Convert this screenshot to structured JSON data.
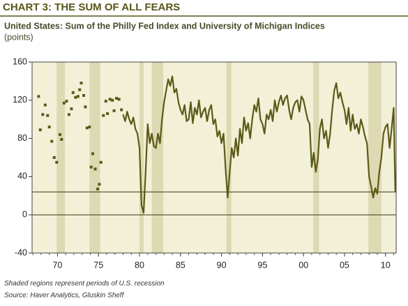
{
  "chart_data": {
    "type": "line",
    "title": "CHART 3: THE SUM OF ALL FEARS",
    "subtitle": "United States: Sum of the Philly Fed Index and University of Michigan Indices",
    "y_label": "(points)",
    "notes": [
      "Shaded regions represent periods of U.S. recession",
      "Source: Haver Analytics, Gluskin Sheff"
    ],
    "xlim": [
      1966.9,
      2011.3
    ],
    "xticks": [
      {
        "value": 1970,
        "label": "70"
      },
      {
        "value": 1975,
        "label": "75"
      },
      {
        "value": 1980,
        "label": "80"
      },
      {
        "value": 1985,
        "label": "85"
      },
      {
        "value": 1990,
        "label": "90"
      },
      {
        "value": 1995,
        "label": "95"
      },
      {
        "value": 2000,
        "label": "00"
      },
      {
        "value": 2005,
        "label": "05"
      },
      {
        "value": 2010,
        "label": "10"
      }
    ],
    "ylim": [
      -40,
      160
    ],
    "yticks": [
      -40,
      0,
      40,
      80,
      120,
      160
    ],
    "hlines": [
      0,
      24
    ],
    "recessions": [
      [
        1969.9,
        1970.9
      ],
      [
        1973.9,
        1975.2
      ],
      [
        1980.0,
        1980.5
      ],
      [
        1981.5,
        1982.9
      ],
      [
        1990.6,
        1991.2
      ],
      [
        2001.2,
        2001.9
      ],
      [
        2007.9,
        2009.5
      ]
    ],
    "background": "#f3f0d8",
    "recession_color": "#dcd9b3",
    "series": [
      {
        "mode": "markers",
        "color": "#5b5a16",
        "x": [
          1967.7,
          1967.9,
          1968.2,
          1968.5,
          1968.8,
          1969.0,
          1969.3,
          1969.6,
          1969.9,
          1970.3,
          1970.5,
          1970.8,
          1971.1,
          1971.4,
          1971.7,
          1971.9,
          1972.2,
          1972.5,
          1972.7,
          1972.9,
          1973.2,
          1973.4,
          1973.6,
          1973.9,
          1974.1,
          1974.3,
          1974.6,
          1974.9,
          1975.1,
          1975.3,
          1975.6,
          1975.9,
          1976.1,
          1976.4,
          1976.7,
          1976.9,
          1977.2,
          1977.5,
          1977.8
        ],
        "values": [
          124,
          89,
          105,
          115,
          104,
          92,
          77,
          60,
          55,
          84,
          79,
          117,
          119,
          105,
          111,
          128,
          123,
          124,
          131,
          138,
          125,
          113,
          91,
          92,
          50,
          64,
          48,
          27,
          32,
          55,
          104,
          119,
          106,
          121,
          120,
          109,
          122,
          121,
          110
        ]
      },
      {
        "mode": "line",
        "color": "#5b5a16",
        "x": [
          1978,
          1978.25,
          1978.5,
          1978.75,
          1979,
          1979.25,
          1979.5,
          1979.75,
          1980,
          1980.25,
          1980.5,
          1980.75,
          1981,
          1981.25,
          1981.5,
          1981.75,
          1982,
          1982.25,
          1982.5,
          1982.75,
          1983,
          1983.25,
          1983.5,
          1983.75,
          1984,
          1984.25,
          1984.5,
          1984.75,
          1985,
          1985.25,
          1985.5,
          1985.75,
          1986,
          1986.25,
          1986.5,
          1986.75,
          1987,
          1987.25,
          1987.5,
          1987.75,
          1988,
          1988.25,
          1988.5,
          1988.75,
          1989,
          1989.25,
          1989.5,
          1989.75,
          1990,
          1990.25,
          1990.5,
          1990.75,
          1991,
          1991.25,
          1991.5,
          1991.75,
          1992,
          1992.25,
          1992.5,
          1992.75,
          1993,
          1993.25,
          1993.5,
          1993.75,
          1994,
          1994.25,
          1994.5,
          1994.75,
          1995,
          1995.25,
          1995.5,
          1995.75,
          1996,
          1996.25,
          1996.5,
          1996.75,
          1997,
          1997.25,
          1997.5,
          1997.75,
          1998,
          1998.25,
          1998.5,
          1998.75,
          1999,
          1999.25,
          1999.5,
          1999.75,
          2000,
          2000.25,
          2000.5,
          2000.75,
          2001,
          2001.25,
          2001.5,
          2001.75,
          2002,
          2002.25,
          2002.5,
          2002.75,
          2003,
          2003.25,
          2003.5,
          2003.75,
          2004,
          2004.25,
          2004.5,
          2004.75,
          2005,
          2005.25,
          2005.5,
          2005.75,
          2006,
          2006.25,
          2006.5,
          2006.75,
          2007,
          2007.25,
          2007.5,
          2007.75,
          2008,
          2008.25,
          2008.5,
          2008.75,
          2009,
          2009.25,
          2009.5,
          2009.75,
          2010,
          2010.25,
          2010.5,
          2010.75,
          2011,
          2011.1,
          2011.2
        ],
        "values": [
          105,
          98,
          108,
          100,
          95,
          102,
          90,
          85,
          70,
          10,
          2,
          45,
          95,
          75,
          85,
          72,
          70,
          85,
          75,
          100,
          118,
          130,
          142,
          135,
          145,
          128,
          132,
          118,
          110,
          105,
          115,
          98,
          100,
          118,
          96,
          112,
          105,
          120,
          102,
          108,
          112,
          98,
          110,
          115,
          95,
          100,
          82,
          88,
          75,
          85,
          48,
          18,
          45,
          70,
          60,
          80,
          62,
          90,
          75,
          102,
          88,
          96,
          80,
          100,
          115,
          108,
          122,
          100,
          95,
          85,
          105,
          100,
          110,
          98,
          120,
          108,
          118,
          125,
          115,
          122,
          125,
          110,
          100,
          112,
          118,
          120,
          108,
          124,
          120,
          110,
          100,
          95,
          50,
          65,
          45,
          58,
          90,
          100,
          80,
          88,
          70,
          85,
          110,
          130,
          138,
          122,
          128,
          118,
          110,
          95,
          112,
          88,
          105,
          90,
          95,
          85,
          100,
          92,
          82,
          75,
          40,
          30,
          18,
          28,
          22,
          45,
          60,
          85,
          92,
          95,
          70,
          90,
          112,
          65,
          24
        ]
      }
    ]
  }
}
